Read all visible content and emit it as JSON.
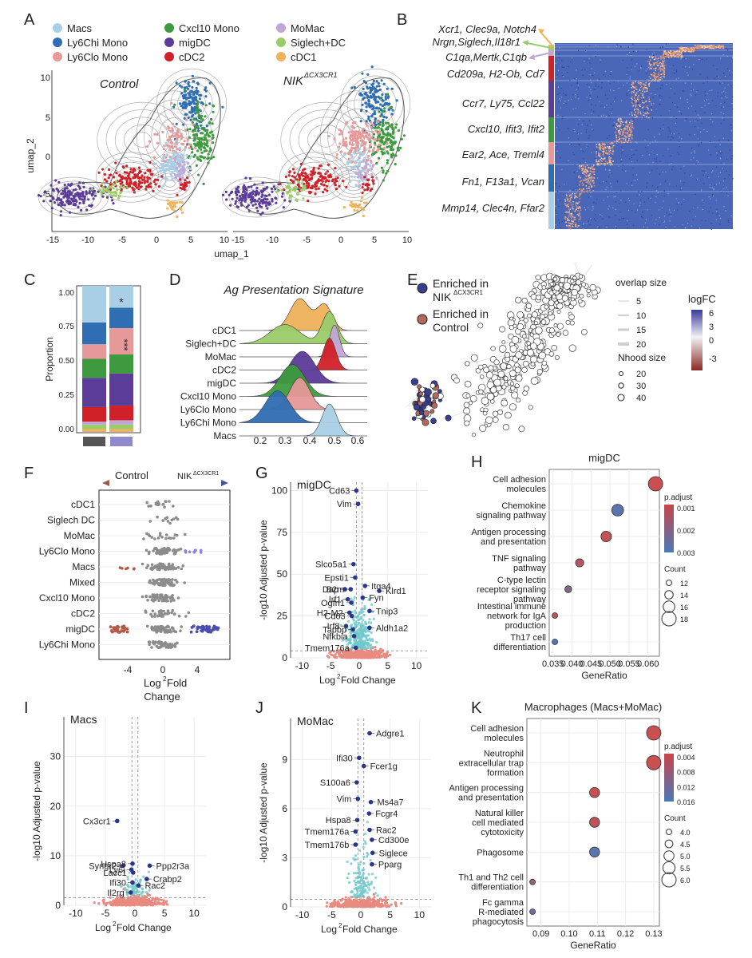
{
  "panel_letters": [
    "A",
    "B",
    "C",
    "D",
    "E",
    "F",
    "G",
    "H",
    "I",
    "J",
    "K"
  ],
  "panelA": {
    "legend": [
      {
        "label": "Macs",
        "color": "#a9cfe6"
      },
      {
        "label": "Ly6Chi Mono",
        "color": "#2f6eb3"
      },
      {
        "label": "Ly6Clo Mono",
        "color": "#e79898"
      },
      {
        "label": "Cxcl10 Mono",
        "color": "#3e9a3e"
      },
      {
        "label": "migDC",
        "color": "#5b3c99"
      },
      {
        "label": "cDC2",
        "color": "#d02028"
      },
      {
        "label": "MoMac",
        "color": "#c2a6d6"
      },
      {
        "label": "Siglech+DC",
        "color": "#9acd6a"
      },
      {
        "label": "cDC1",
        "color": "#f0b25a"
      }
    ],
    "title_control": "Control",
    "title_nik": "NIK",
    "title_nik_sup": "ΔCX3CR1",
    "ylabel": "umap_2",
    "xlabel": "umap_1",
    "yticks": [
      "10",
      "5",
      "0",
      "-5"
    ],
    "xticks_left": [
      "-15",
      "-10",
      "-5",
      "0",
      "5",
      "10"
    ],
    "xticks_right": [
      "-15",
      "-10",
      "-5",
      "0",
      "5",
      "10"
    ]
  },
  "panelB": {
    "genes": [
      "Xcr1, Clec9a, Notch4",
      "Nrgn,Siglech,Il18r1",
      "C1qa,Mertk,C1qb",
      "Cd209a, H2-Ob, Cd7",
      "Ccr7, Ly75, Ccl22",
      "Cxcl10, Ifit3, Ifit2",
      "Ear2, Ace, Treml4",
      "Fn1, F13a1, Vcan",
      "Mmp14, Clec4n, Ffar2"
    ]
  },
  "panelC": {
    "ylabel": "Proportion",
    "yticks": [
      "1.00",
      "0.75",
      "0.50",
      "0.25",
      "0.00"
    ],
    "sig1": "*",
    "sig2": "***",
    "bar_fill_colors": [
      "#555555",
      "#8f8ad0"
    ]
  },
  "panelD": {
    "title": "Ag Presentation Signature",
    "rows": [
      "cDC1",
      "Siglech+DC",
      "MoMac",
      "cDC2",
      "migDC",
      "Cxcl10 Mono",
      "Ly6Clo Mono",
      "Ly6Chi Mono",
      "Macs"
    ],
    "xticks": [
      "0.2",
      "0.3",
      "0.4",
      "0.5",
      "0.6"
    ]
  },
  "panelE": {
    "legend1": "Enriched in",
    "legend1b": "NIK",
    "legend1b_sup": "ΔCX3CR1",
    "legend2": "Enriched in",
    "legend2b": "Control",
    "overlap_title": "overlap size",
    "overlap_values": [
      "5",
      "10",
      "15",
      "20"
    ],
    "logfc_title": "logFC",
    "logfc_ticks": [
      "6",
      "3",
      "0",
      "-3"
    ],
    "nhood_title": "Nhood size",
    "nhood_values": [
      "20",
      "30",
      "40"
    ]
  },
  "panelF": {
    "arrow_left": "Control",
    "arrow_right": "NIK",
    "arrow_right_sup": "ΔCX3CR1",
    "rows": [
      "cDC1",
      "Siglech DC",
      "MoMac",
      "Ly6Clo Mono",
      "Macs",
      "Mixed",
      "Cxcl10 Mono",
      "cDC2",
      "migDC",
      "Ly6Chi Mono"
    ],
    "xticks": [
      "-4",
      "0",
      "4"
    ],
    "xlabel1": "Log",
    "xlabel_sup": "2",
    "xlabel2": " Fold",
    "xlabel3": "Change"
  },
  "panelG": {
    "title": "migDC",
    "ylabel": "-log10 Adjusted p-value",
    "xlabel": "Log",
    "xlabel_sup": "2",
    "xlabel_rest": " Fold Change",
    "yticks": [
      "100",
      "75",
      "50",
      "25",
      "0"
    ],
    "xticks": [
      "-10",
      "-5",
      "0",
      "5",
      "10"
    ],
    "genes": [
      {
        "name": "Cd63",
        "x": -0.5,
        "y": 100
      },
      {
        "name": "Vim",
        "x": -0.2,
        "y": 92
      },
      {
        "name": "Slco5a1",
        "x": -1.0,
        "y": 56
      },
      {
        "name": "Epsti1",
        "x": -0.7,
        "y": 48
      },
      {
        "name": "Dap",
        "x": -2.5,
        "y": 41
      },
      {
        "name": "B2m",
        "x": -1.5,
        "y": 41
      },
      {
        "name": "Itga4",
        "x": 1.0,
        "y": 43
      },
      {
        "name": "Klrd1",
        "x": 3.5,
        "y": 40
      },
      {
        "name": "Irf1",
        "x": -2.0,
        "y": 35
      },
      {
        "name": "Ogfrl1",
        "x": -1.4,
        "y": 33
      },
      {
        "name": "Fyn",
        "x": 0.6,
        "y": 36
      },
      {
        "name": "H2-M2",
        "x": -1.7,
        "y": 27
      },
      {
        "name": "Cd63",
        "x": -1.3,
        "y": 25
      },
      {
        "name": "Tnip3",
        "x": 1.8,
        "y": 28
      },
      {
        "name": "Irf8",
        "x": -2.3,
        "y": 19
      },
      {
        "name": "Tapbp",
        "x": -1.1,
        "y": 17
      },
      {
        "name": "Aldh1a2",
        "x": 1.8,
        "y": 18
      },
      {
        "name": "Nfkbia",
        "x": -0.9,
        "y": 13
      },
      {
        "name": "Tmem176a",
        "x": -0.6,
        "y": 6
      }
    ]
  },
  "panelH": {
    "title": "migDC",
    "xlabel": "GeneRatio",
    "xticks": [
      "0.035",
      "0.040",
      "0.045",
      "0.050",
      "0.055",
      "0.060"
    ],
    "terms": [
      {
        "label": [
          "Cell adhesion",
          "molecules"
        ],
        "ratio": 0.062,
        "count": 18,
        "padj": 0.0003
      },
      {
        "label": [
          "Chemokine",
          "signaling pathway"
        ],
        "ratio": 0.052,
        "count": 16,
        "padj": 0.0033
      },
      {
        "label": [
          "Antigen processing",
          "and presentation"
        ],
        "ratio": 0.049,
        "count": 15,
        "padj": 0.0005
      },
      {
        "label": [
          "TNF signaling",
          "pathway"
        ],
        "ratio": 0.042,
        "count": 13,
        "padj": 0.0008
      },
      {
        "label": [
          "C-type lectin",
          "receptor signaling",
          "pathway"
        ],
        "ratio": 0.039,
        "count": 12,
        "padj": 0.0022
      },
      {
        "label": [
          "Intestinal immune",
          "network for IgA",
          "production"
        ],
        "ratio": 0.0355,
        "count": 11,
        "padj": 0.0007
      },
      {
        "label": [
          "Th17 cell",
          "differentiation"
        ],
        "ratio": 0.0355,
        "count": 11,
        "padj": 0.0036
      }
    ],
    "padj_title": "p.adjust",
    "padj_ticks": [
      "0.001",
      "0.002",
      "0.003"
    ],
    "count_title": "Count",
    "count_values": [
      "12",
      "14",
      "16",
      "18"
    ]
  },
  "panelI": {
    "title": "Macs",
    "ylabel": "-log10 Adjusted p-value",
    "xlabel": "Log",
    "xlabel_sup": "2",
    "xlabel_rest": " Fold Change",
    "yticks": [
      "30",
      "20",
      "10",
      "0"
    ],
    "xticks": [
      "-10",
      "-5",
      "0",
      "5",
      "10"
    ],
    "genes": [
      {
        "name": "Cx3cr1",
        "x": -3.0,
        "y": 17
      },
      {
        "name": "Syngr2",
        "x": -2.0,
        "y": 8
      },
      {
        "name": "Hspa8",
        "x": -0.4,
        "y": 8.4
      },
      {
        "name": "Ly6i",
        "x": -0.6,
        "y": 7.2
      },
      {
        "name": "Lacc1",
        "x": -0.3,
        "y": 6.6
      },
      {
        "name": "Ppp2r3a",
        "x": 2.5,
        "y": 8.0
      },
      {
        "name": "Ifi30",
        "x": -0.4,
        "y": 4.6
      },
      {
        "name": "Crabp2",
        "x": 2.0,
        "y": 5.3
      },
      {
        "name": "Rac2",
        "x": 0.6,
        "y": 4.0
      },
      {
        "name": "Il2rg",
        "x": -0.7,
        "y": 2.6
      }
    ]
  },
  "panelJ": {
    "title": "MoMac",
    "ylabel": "-log10 Adjusted p-value",
    "xlabel": "Log",
    "xlabel_sup": "2",
    "xlabel_rest": " Fold Change",
    "yticks": [
      "9",
      "6",
      "3",
      "0"
    ],
    "xticks": [
      "-10",
      "-5",
      "0",
      "5",
      "10"
    ],
    "genes": [
      {
        "name": "Adgre1",
        "x": 1.5,
        "y": 10.6
      },
      {
        "name": "Ifi30",
        "x": -0.3,
        "y": 9.1
      },
      {
        "name": "Fcer1g",
        "x": 0.5,
        "y": 8.6
      },
      {
        "name": "S100a6",
        "x": -0.7,
        "y": 7.6
      },
      {
        "name": "Vim",
        "x": -0.5,
        "y": 6.6
      },
      {
        "name": "Ms4a7",
        "x": 1.7,
        "y": 6.4
      },
      {
        "name": "Fcgr4",
        "x": 1.4,
        "y": 5.7
      },
      {
        "name": "Hspa8",
        "x": -0.6,
        "y": 5.3
      },
      {
        "name": "Rac2",
        "x": 1.5,
        "y": 4.7
      },
      {
        "name": "Tmem176a",
        "x": -0.9,
        "y": 4.6
      },
      {
        "name": "Cd300e",
        "x": 1.9,
        "y": 4.1
      },
      {
        "name": "Tmem176b",
        "x": -0.9,
        "y": 3.8
      },
      {
        "name": "Siglece",
        "x": 2.0,
        "y": 3.3
      },
      {
        "name": "Pparg",
        "x": 1.9,
        "y": 2.6
      }
    ]
  },
  "panelK": {
    "title": "Macrophages (Macs+MoMac)",
    "xlabel": "GeneRatio",
    "xticks": [
      "0.09",
      "0.10",
      "0.11",
      "0.12",
      "0.13"
    ],
    "terms": [
      {
        "label": [
          "Cell adhesion",
          "molecules"
        ],
        "ratio": 0.13,
        "count": 6.0,
        "padj": 0.004
      },
      {
        "label": [
          "Neutrophil",
          "extracellular trap",
          "formation"
        ],
        "ratio": 0.13,
        "count": 6.0,
        "padj": 0.004
      },
      {
        "label": [
          "Antigen processing",
          "and presentation"
        ],
        "ratio": 0.109,
        "count": 5.0,
        "padj": 0.004
      },
      {
        "label": [
          "Natural killer",
          "cell mediated",
          "cytotoxicity"
        ],
        "ratio": 0.109,
        "count": 5.0,
        "padj": 0.005
      },
      {
        "label": [
          "Phagosome"
        ],
        "ratio": 0.109,
        "count": 5.0,
        "padj": 0.015
      },
      {
        "label": [
          "Th1 and Th2 cell",
          "differentiation"
        ],
        "ratio": 0.087,
        "count": 4.0,
        "padj": 0.009
      },
      {
        "label": [
          "Fc gamma",
          "R-mediated",
          "phagocytosis"
        ],
        "ratio": 0.087,
        "count": 4.0,
        "padj": 0.013
      }
    ],
    "padj_title": "p.adjust",
    "padj_ticks": [
      "0.004",
      "0.008",
      "0.012",
      "0.016"
    ],
    "count_title": "Count",
    "count_values": [
      "4.0",
      "4.5",
      "5.0",
      "5.5",
      "6.0"
    ]
  },
  "colors": {
    "blue": "#3a4ea2",
    "red": "#c9443c",
    "grey": "#7a7a7a",
    "teal": "#6ec8c9",
    "salmon": "#e88a80"
  }
}
